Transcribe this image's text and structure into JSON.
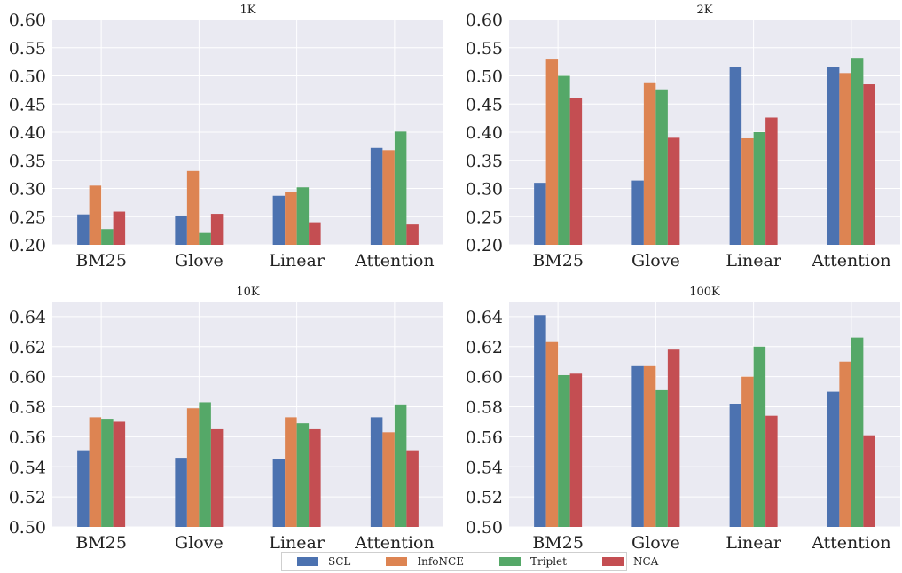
{
  "chart_data": [
    {
      "type": "bar",
      "title": "1K",
      "categories": [
        "BM25",
        "Glove",
        "Linear",
        "Attention"
      ],
      "ylim": [
        0.2,
        0.6
      ],
      "yticks": [
        "0.20",
        "0.25",
        "0.30",
        "0.35",
        "0.40",
        "0.45",
        "0.50",
        "0.55",
        "0.60"
      ],
      "series": [
        {
          "name": "SCL",
          "values": [
            0.254,
            0.252,
            0.287,
            0.372
          ]
        },
        {
          "name": "InfoNCE",
          "values": [
            0.305,
            0.331,
            0.293,
            0.368
          ]
        },
        {
          "name": "Triplet",
          "values": [
            0.228,
            0.221,
            0.302,
            0.401
          ]
        },
        {
          "name": "NCA",
          "values": [
            0.259,
            0.255,
            0.24,
            0.236
          ]
        }
      ],
      "grid": true
    },
    {
      "type": "bar",
      "title": "2K",
      "categories": [
        "BM25",
        "Glove",
        "Linear",
        "Attention"
      ],
      "ylim": [
        0.2,
        0.6
      ],
      "yticks": [
        "0.20",
        "0.25",
        "0.30",
        "0.35",
        "0.40",
        "0.45",
        "0.50",
        "0.55",
        "0.60"
      ],
      "series": [
        {
          "name": "SCL",
          "values": [
            0.31,
            0.314,
            0.516,
            0.516
          ]
        },
        {
          "name": "InfoNCE",
          "values": [
            0.529,
            0.487,
            0.389,
            0.505
          ]
        },
        {
          "name": "Triplet",
          "values": [
            0.5,
            0.476,
            0.4,
            0.532
          ]
        },
        {
          "name": "NCA",
          "values": [
            0.46,
            0.39,
            0.426,
            0.485
          ]
        }
      ],
      "grid": true
    },
    {
      "type": "bar",
      "title": "10K",
      "categories": [
        "BM25",
        "Glove",
        "Linear",
        "Attention"
      ],
      "ylim": [
        0.5,
        0.65
      ],
      "yticks": [
        "0.50",
        "0.52",
        "0.54",
        "0.56",
        "0.58",
        "0.60",
        "0.62",
        "0.64"
      ],
      "series": [
        {
          "name": "SCL",
          "values": [
            0.551,
            0.546,
            0.545,
            0.573
          ]
        },
        {
          "name": "InfoNCE",
          "values": [
            0.573,
            0.579,
            0.573,
            0.563
          ]
        },
        {
          "name": "Triplet",
          "values": [
            0.572,
            0.583,
            0.569,
            0.581
          ]
        },
        {
          "name": "NCA",
          "values": [
            0.57,
            0.565,
            0.565,
            0.551
          ]
        }
      ],
      "grid": true
    },
    {
      "type": "bar",
      "title": "100K",
      "categories": [
        "BM25",
        "Glove",
        "Linear",
        "Attention"
      ],
      "ylim": [
        0.5,
        0.65
      ],
      "yticks": [
        "0.50",
        "0.52",
        "0.54",
        "0.56",
        "0.58",
        "0.60",
        "0.62",
        "0.64"
      ],
      "series": [
        {
          "name": "SCL",
          "values": [
            0.641,
            0.607,
            0.582,
            0.59
          ]
        },
        {
          "name": "InfoNCE",
          "values": [
            0.623,
            0.607,
            0.6,
            0.61
          ]
        },
        {
          "name": "Triplet",
          "values": [
            0.601,
            0.591,
            0.62,
            0.626
          ]
        },
        {
          "name": "NCA",
          "values": [
            0.602,
            0.618,
            0.574,
            0.561
          ]
        }
      ],
      "grid": true
    }
  ],
  "legend": {
    "placement": "bottom-center",
    "items": [
      {
        "label": "SCL",
        "color": "#4c72b0"
      },
      {
        "label": "InfoNCE",
        "color": "#dd8452"
      },
      {
        "label": "Triplet",
        "color": "#55a868"
      },
      {
        "label": "NCA",
        "color": "#c44e52"
      }
    ]
  },
  "colors": {
    "panel_bg": "#eaeaf2",
    "grid": "#ffffff"
  }
}
